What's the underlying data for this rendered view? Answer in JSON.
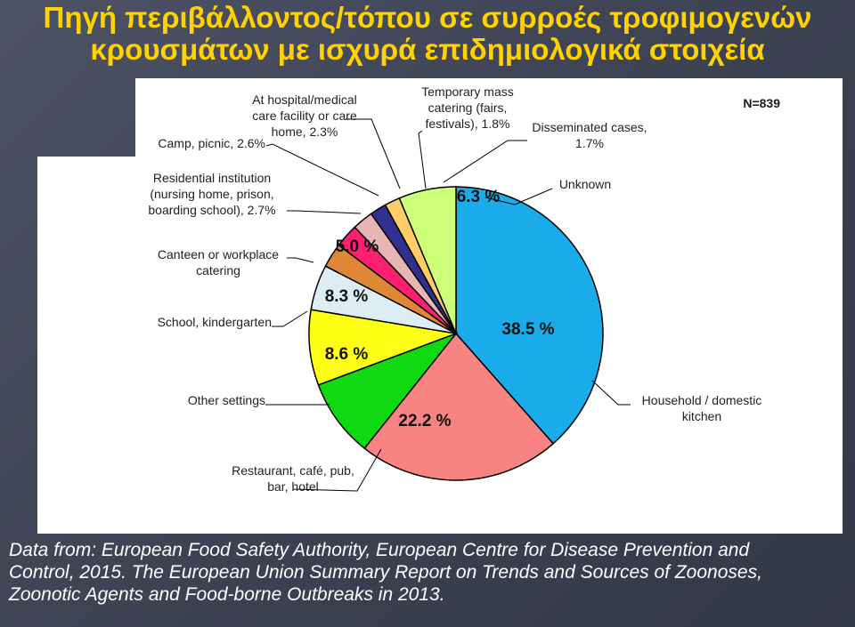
{
  "slide": {
    "title_line1": "Πηγή περιβάλλοντος/τόπου σε συρροές τροφιμογενών",
    "title_line2": "κρουσμάτων με ισχυρά επιδημιολογικά στοιχεία",
    "caption_line1": "Data from: European Food Safety Authority, European Centre for Disease Prevention and",
    "caption_line2": "Control, 2015. The European Union Summary Report on Trends and Sources of Zoonoses,",
    "caption_line3": "Zoonotic Agents  and Food-borne Outbreaks in 2013."
  },
  "colors": {
    "title": "#ffd200",
    "background": "#3f4455",
    "outline": "#000000"
  },
  "chart_data": {
    "type": "pie",
    "n_label": "N=839",
    "slices": [
      {
        "name": "Household / domestic kitchen",
        "label": [
          "Household / domestic",
          "kitchen"
        ],
        "value": 38.5,
        "pct_text": "38.5 %",
        "color": "#1aabeb"
      },
      {
        "name": "Restaurant, café, pub, bar, hotel",
        "label": [
          "Restaurant, café, pub,",
          "bar, hotel"
        ],
        "value": 22.2,
        "pct_text": "22.2 %",
        "color": "#f78383"
      },
      {
        "name": "Other settings",
        "label": [
          "Other settings"
        ],
        "value": 8.6,
        "pct_text": "8.6 %",
        "color": "#11d911"
      },
      {
        "name": "School, kindergarten",
        "label": [
          "School, kindergarten"
        ],
        "value": 8.3,
        "pct_text": "8.3 %",
        "color": "#ffff16"
      },
      {
        "name": "Canteen or workplace catering",
        "label": [
          "Canteen or workplace",
          "catering"
        ],
        "value": 5.0,
        "pct_text": "5.0 %",
        "color": "#dceef3"
      },
      {
        "name": "Residential institution (nursing home, prison, boarding school)",
        "label": [
          "Residential institution",
          "(nursing home, prison,",
          "boarding school), 2.7%"
        ],
        "value": 2.7,
        "pct_text": "",
        "color": "#de8739"
      },
      {
        "name": "Camp, picnic",
        "label": [
          "Camp, picnic, 2.6%"
        ],
        "value": 2.6,
        "pct_text": "",
        "color": "#ff1f72"
      },
      {
        "name": "At hospital/medical care facility or care home",
        "label": [
          "At hospital/medical",
          "care facility or care",
          "home, 2.3%"
        ],
        "value": 2.3,
        "pct_text": "",
        "color": "#e7b5b3"
      },
      {
        "name": "Temporary mass catering (fairs, festivals)",
        "label": [
          "Temporary mass",
          "catering (fairs,",
          "festivals), 1.8%"
        ],
        "value": 1.8,
        "pct_text": "",
        "color": "#31308f"
      },
      {
        "name": "Disseminated cases",
        "label": [
          "Disseminated cases,",
          "1.7%"
        ],
        "value": 1.7,
        "pct_text": "",
        "color": "#ffcc66"
      },
      {
        "name": "Unknown",
        "label": [
          "Unknown"
        ],
        "value": 6.3,
        "pct_text": "6.3 %",
        "color": "#ccff77"
      }
    ]
  }
}
